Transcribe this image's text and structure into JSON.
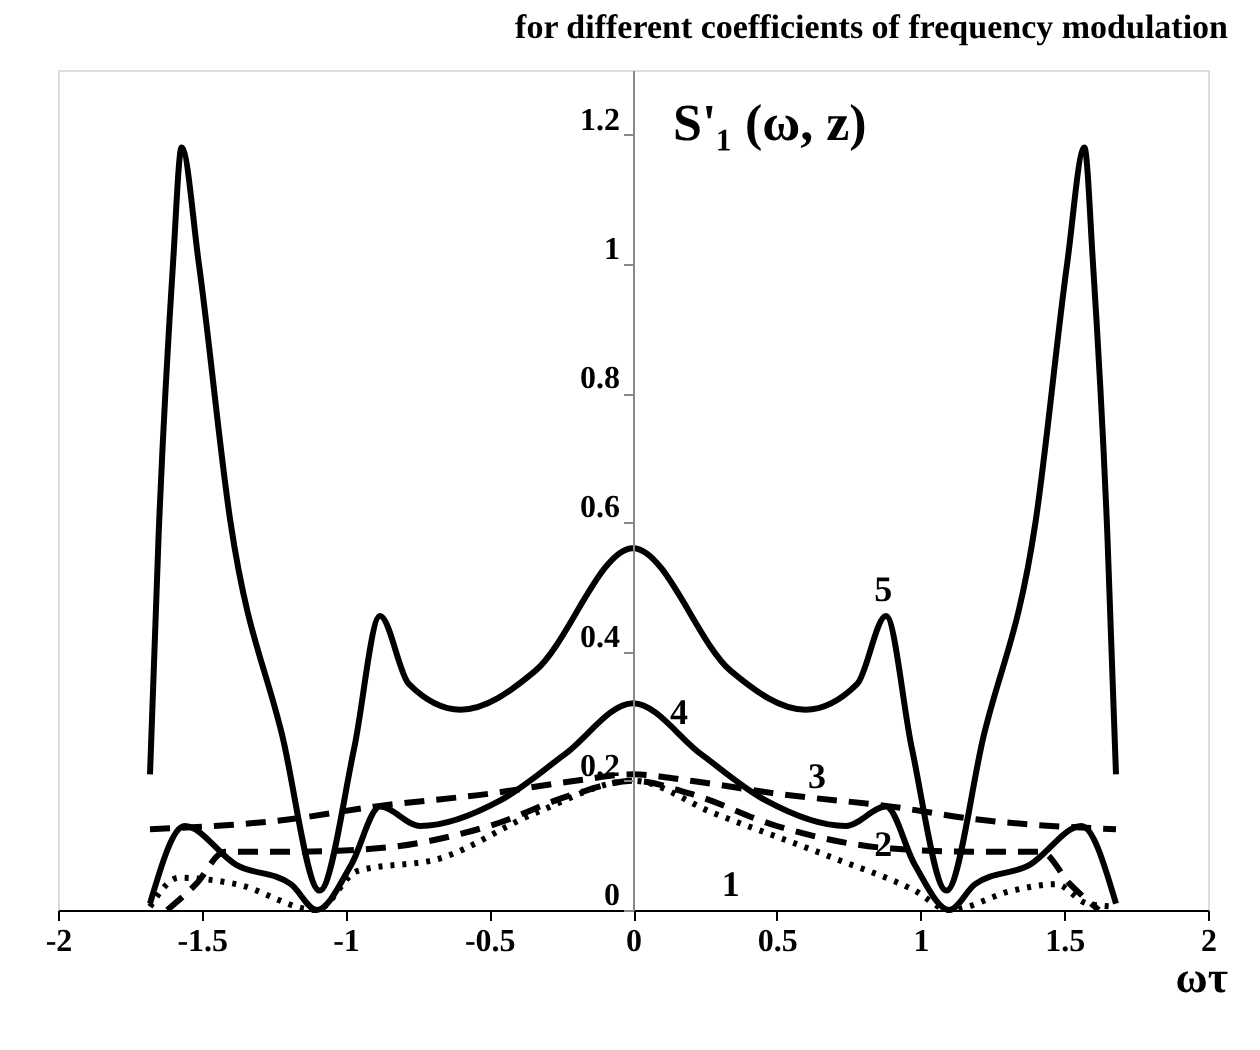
{
  "chart_data": {
    "type": "line",
    "title": "for different coefficients of frequency modulation",
    "ylabel": "S'₁ (ω, z)",
    "xlabel": "ωτ",
    "xlim": [
      -2,
      2
    ],
    "xticks": [
      -2,
      -1.5,
      -1,
      -0.5,
      0,
      0.5,
      1,
      1.5,
      2
    ],
    "ylim": [
      0,
      1.3
    ],
    "yticks": [
      0,
      0.2,
      0.4,
      0.6,
      0.8,
      1,
      1.2
    ],
    "grid": false,
    "marker": "none",
    "series": [
      {
        "color": "#000000",
        "line_style": "dotted",
        "x": [
          -1.68,
          -1.58,
          -1.38,
          -1.1,
          -0.96,
          -0.67,
          -0.34,
          0,
          0.28,
          0.7,
          0.98,
          1.1,
          1.32,
          1.47,
          1.58,
          1.68
        ],
        "values": [
          0.005,
          0.05,
          0.04,
          0.0,
          0.06,
          0.08,
          0.15,
          0.2,
          0.15,
          0.08,
          0.03,
          0.0,
          0.03,
          0.04,
          0.01,
          0.005
        ]
      },
      {
        "color": "#000000",
        "line_style": "dashed",
        "x": [
          -1.62,
          -1.52,
          -1.42,
          -1.2,
          -0.9,
          -0.5,
          -0.2,
          0,
          0.2,
          0.5,
          0.9,
          1.2,
          1.42,
          1.52,
          1.62
        ],
        "values": [
          0.0,
          0.04,
          0.09,
          0.09,
          0.095,
          0.13,
          0.18,
          0.2,
          0.18,
          0.13,
          0.095,
          0.09,
          0.09,
          0.04,
          0.0
        ]
      },
      {
        "color": "#000000",
        "line_style": "dashed",
        "x": [
          -1.68,
          -1.2,
          -0.9,
          -0.5,
          -0.2,
          0,
          0.2,
          0.5,
          0.9,
          1.2,
          1.68
        ],
        "values": [
          0.125,
          0.14,
          0.16,
          0.18,
          0.2,
          0.21,
          0.2,
          0.18,
          0.16,
          0.14,
          0.125
        ]
      },
      {
        "color": "#000000",
        "line_style": "solid",
        "x": [
          -1.68,
          -1.56,
          -1.38,
          -1.19,
          -1.1,
          -0.98,
          -0.88,
          -0.74,
          -0.46,
          -0.24,
          0,
          0.24,
          0.46,
          0.74,
          0.88,
          0.98,
          1.1,
          1.19,
          1.38,
          1.56,
          1.68
        ],
        "values": [
          0.01,
          0.13,
          0.07,
          0.04,
          0.0,
          0.07,
          0.16,
          0.13,
          0.17,
          0.24,
          0.32,
          0.24,
          0.17,
          0.13,
          0.16,
          0.07,
          0.0,
          0.04,
          0.07,
          0.13,
          0.01
        ]
      },
      {
        "color": "#000000",
        "line_style": "solid",
        "x": [
          -1.68,
          -1.65,
          -1.6,
          -1.57,
          -1.51,
          -1.4,
          -1.22,
          -1.09,
          -0.97,
          -0.88,
          -0.78,
          -0.6,
          -0.34,
          0,
          0.34,
          0.6,
          0.78,
          0.88,
          0.97,
          1.09,
          1.22,
          1.4,
          1.51,
          1.57,
          1.6,
          1.65,
          1.68
        ],
        "values": [
          0.21,
          0.58,
          1.0,
          1.18,
          1.0,
          0.6,
          0.27,
          0.03,
          0.25,
          0.455,
          0.35,
          0.31,
          0.37,
          0.56,
          0.37,
          0.31,
          0.35,
          0.455,
          0.25,
          0.03,
          0.27,
          0.6,
          1.0,
          1.18,
          1.0,
          0.58,
          0.21
        ]
      }
    ],
    "annotations": [
      "1",
      {
        "text": "2",
        "x": 0.87,
        "y": 0.065
      },
      {
        "text": "3",
        "x": 0.64,
        "y": 0.17
      },
      {
        "text": "4",
        "x": 0.16,
        "y": 0.27
      },
      {
        "text": "5",
        "x": 0.87,
        "y": 0.46
      }
    ]
  }
}
